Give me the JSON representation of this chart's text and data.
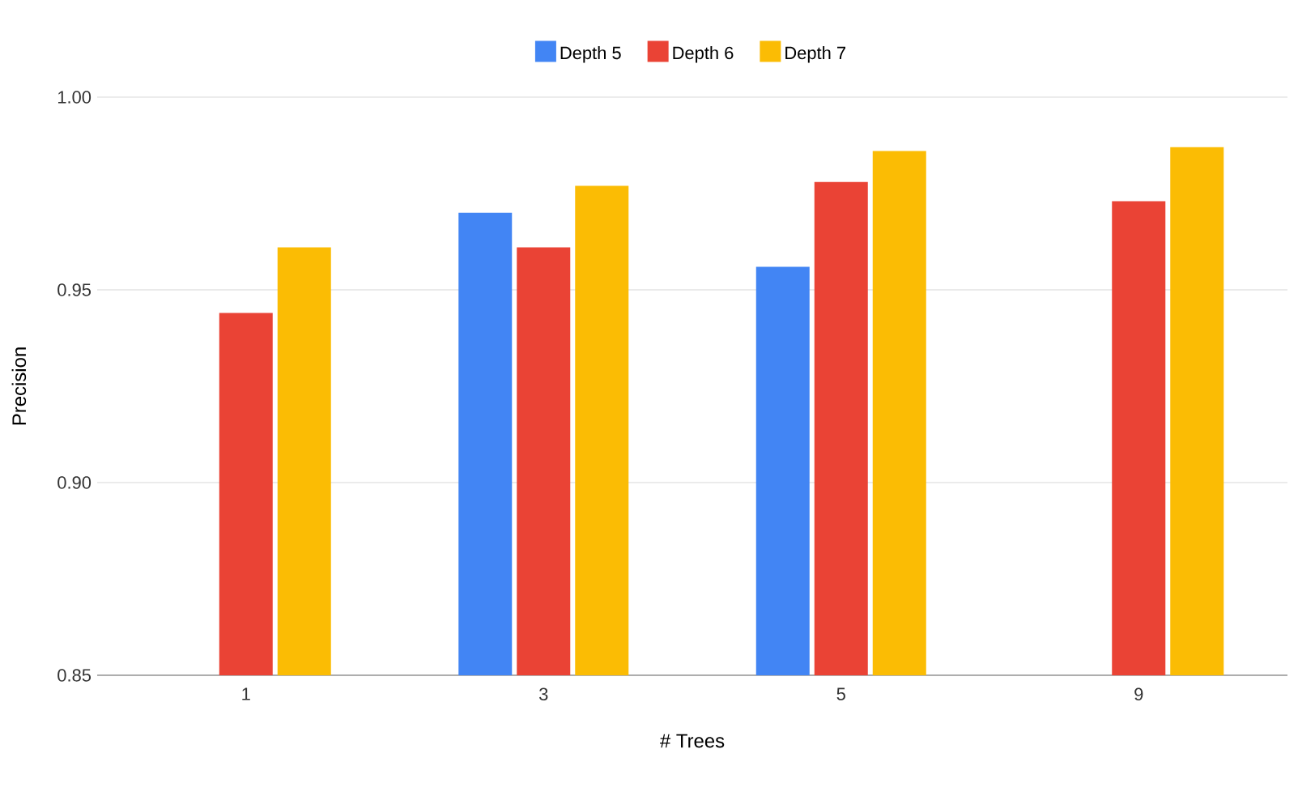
{
  "chart_data": {
    "type": "bar",
    "xlabel": "# Trees",
    "ylabel": "Precision",
    "categories": [
      "1",
      "3",
      "5",
      "9"
    ],
    "series": [
      {
        "name": "Depth 5",
        "color": "#4285f4",
        "values": [
          null,
          0.97,
          0.956,
          null
        ]
      },
      {
        "name": "Depth 6",
        "color": "#ea4335",
        "values": [
          0.944,
          0.961,
          0.978,
          0.973
        ]
      },
      {
        "name": "Depth 7",
        "color": "#fbbc04",
        "values": [
          0.961,
          0.977,
          0.986,
          0.987
        ]
      }
    ],
    "ylim": [
      0.85,
      1.0
    ],
    "yticks": [
      {
        "value": 0.85,
        "label": "0.85"
      },
      {
        "value": 0.9,
        "label": "0.90"
      },
      {
        "value": 0.95,
        "label": "0.95"
      },
      {
        "value": 1.0,
        "label": "1.00"
      }
    ],
    "grid": "y",
    "legend": "top"
  }
}
